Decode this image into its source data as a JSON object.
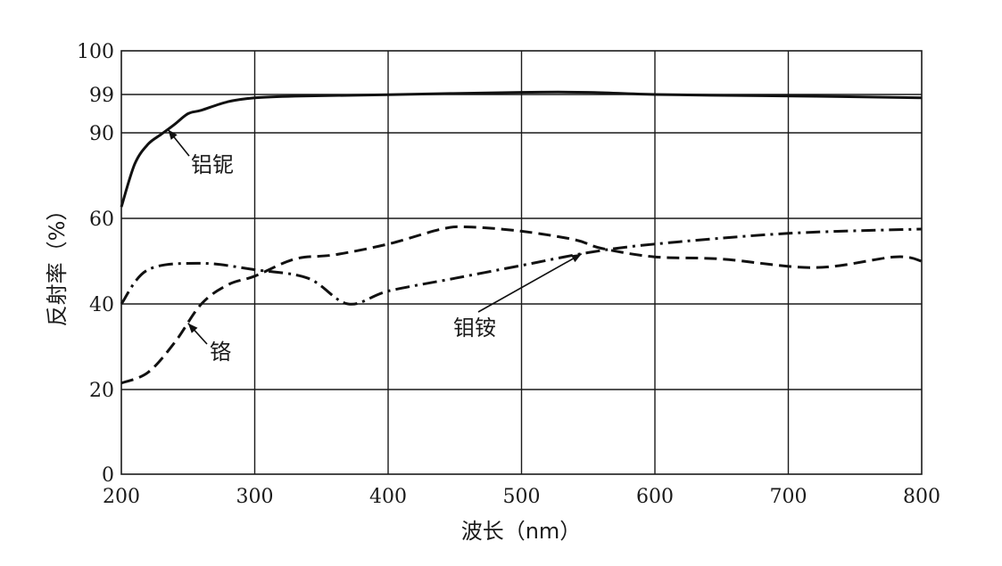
{
  "chart_data": {
    "type": "line",
    "xlabel": "波长（nm）",
    "ylabel": "反射率（%）",
    "xlim": [
      200,
      800
    ],
    "x_ticks": [
      200,
      300,
      400,
      500,
      600,
      700,
      800
    ],
    "y_tick_labels": [
      "0",
      "20",
      "40",
      "60",
      "90",
      "99",
      "100"
    ],
    "y_axis_note": "non-linear: positions follow printed ticks 0,20,40,60,90,99,100",
    "grid": true,
    "legend": "inline annotations with arrows",
    "series": [
      {
        "name": "铝铌",
        "style": "solid",
        "x": [
          200,
          210,
          220,
          230,
          240,
          250,
          260,
          280,
          300,
          330,
          400,
          500,
          550,
          600,
          680,
          740,
          800
        ],
        "y": [
          64,
          79,
          86,
          89.5,
          92,
          94.5,
          95.3,
          97.3,
          98.2,
          98.6,
          98.95,
          99.05,
          99.05,
          99.0,
          98.7,
          98.5,
          98.2
        ]
      },
      {
        "name": "铬",
        "style": "dashed",
        "x": [
          200,
          220,
          240,
          260,
          280,
          300,
          330,
          360,
          400,
          440,
          460,
          500,
          540,
          560,
          600,
          650,
          720,
          780,
          800
        ],
        "y": [
          21.5,
          24,
          31,
          40,
          44.5,
          46.5,
          50.5,
          51.5,
          54,
          57.5,
          58,
          57,
          55,
          53,
          51,
          50.5,
          48.5,
          51,
          50
        ]
      },
      {
        "name": "钼铵",
        "style": "dash-dot",
        "x": [
          200,
          220,
          260,
          300,
          340,
          370,
          400,
          450,
          500,
          550,
          600,
          700,
          800
        ],
        "y": [
          40,
          48,
          49.5,
          48,
          46,
          40,
          43,
          46,
          49,
          52,
          54,
          56.5,
          57.5
        ]
      }
    ],
    "annotations": [
      {
        "text": "铝铌",
        "series": "铝铌"
      },
      {
        "text": "铬",
        "series": "铬"
      },
      {
        "text": "钼铵",
        "series": "钼铵"
      }
    ]
  }
}
